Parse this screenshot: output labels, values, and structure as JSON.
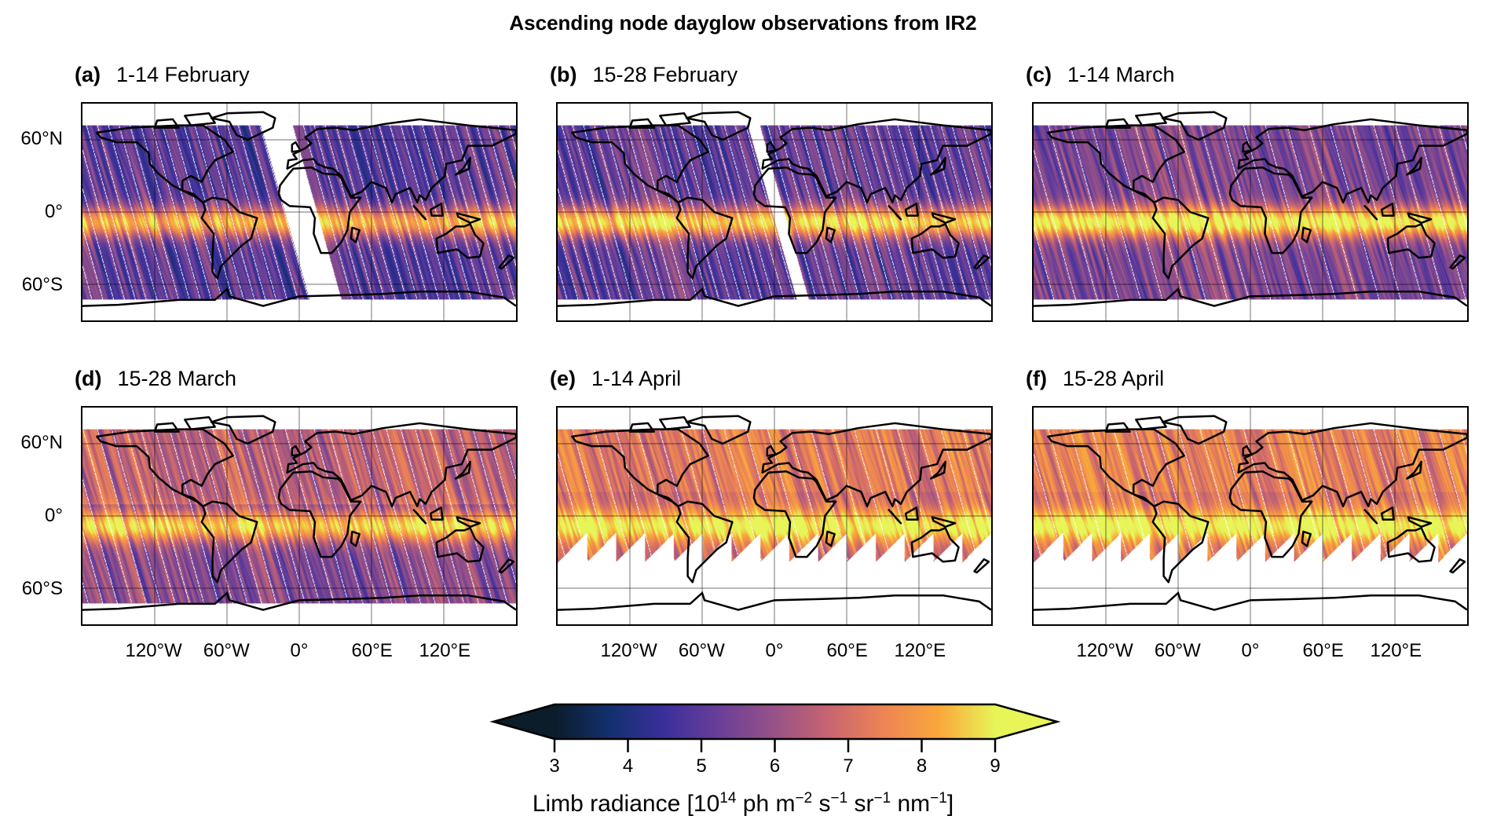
{
  "title": "Ascending node dayglow observations from IR2",
  "panels": [
    {
      "letter": "(a)",
      "label": "1-14 February",
      "coverage_lat": [
        -72,
        72
      ],
      "mean": 5.0,
      "equator_boost": 3.3,
      "gap_lon": [
        -12,
        14
      ]
    },
    {
      "letter": "(b)",
      "label": "15-28 February",
      "coverage_lat": [
        -72,
        72
      ],
      "mean": 5.1,
      "equator_boost": 3.6,
      "gap_lon": [
        -2,
        8
      ]
    },
    {
      "letter": "(c)",
      "label": "1-14 March",
      "coverage_lat": [
        -72,
        72
      ],
      "mean": 5.6,
      "equator_boost": 3.6,
      "gap_lon": null
    },
    {
      "letter": "(d)",
      "label": "15-28 March",
      "coverage_lat": [
        -72,
        72
      ],
      "mean": 6.0,
      "equator_boost": 3.0,
      "gap_lon": null
    },
    {
      "letter": "(e)",
      "label": "1-14 April",
      "coverage_lat": [
        -38,
        72
      ],
      "mean": 7.0,
      "equator_boost": 2.2,
      "gap_lon": null
    },
    {
      "letter": "(f)",
      "label": "15-28 April",
      "coverage_lat": [
        -38,
        72
      ],
      "mean": 7.1,
      "equator_boost": 2.2,
      "gap_lon": null
    }
  ],
  "lat_labels": [
    {
      "value": 60,
      "text": "60°N"
    },
    {
      "value": 0,
      "text": "0°"
    },
    {
      "value": -60,
      "text": "60°S"
    }
  ],
  "lon_labels": [
    {
      "value": -120,
      "text": "120°W"
    },
    {
      "value": -60,
      "text": "60°W"
    },
    {
      "value": 0,
      "text": "0°"
    },
    {
      "value": 60,
      "text": "60°E"
    },
    {
      "value": 120,
      "text": "120°E"
    }
  ],
  "colorbar": {
    "min": 3,
    "max": 9,
    "extend": "both",
    "ticks": [
      "3",
      "4",
      "5",
      "6",
      "7",
      "8",
      "9"
    ],
    "label": {
      "a": "Limb radiance [10",
      "b": "14",
      "c": " ph m",
      "d": "−2",
      "e": " s",
      "f": "−1",
      "g": " sr",
      "h": "−1",
      "i": " nm",
      "j": "−1",
      "k": "]"
    },
    "colors": [
      "#0b1c2a",
      "#13306e",
      "#3b2f9c",
      "#6a3f98",
      "#985287",
      "#c86570",
      "#ee8554",
      "#f9a83a",
      "#e7f558"
    ]
  }
}
